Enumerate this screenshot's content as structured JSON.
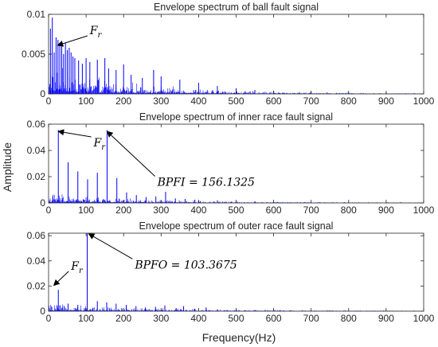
{
  "figure": {
    "ylabel": "Amplitude",
    "xlabel": "Frequency(Hz)"
  },
  "chart_data": [
    {
      "type": "line",
      "title": "Envelope spectrum of ball fault signal",
      "xlim": [
        0,
        1000
      ],
      "ylim": [
        0,
        0.01
      ],
      "xticks": [
        "0",
        "100",
        "200",
        "300",
        "400",
        "500",
        "600",
        "700",
        "800",
        "900",
        "1000"
      ],
      "yticks": [
        "0",
        "0.005",
        "0.01"
      ],
      "color": "#0000ff",
      "series": [
        {
          "x": [
            5,
            10,
            15,
            20,
            25,
            30,
            35,
            40,
            45,
            50,
            55,
            60,
            65,
            70,
            80,
            90,
            100,
            110,
            130,
            150,
            160,
            180,
            200,
            220,
            250,
            280,
            300,
            350,
            400,
            450,
            500,
            550,
            600,
            700,
            800,
            900,
            1000
          ],
          "y": [
            0.0082,
            0.0096,
            0.0052,
            0.0071,
            0.0068,
            0.0062,
            0.006,
            0.005,
            0.0064,
            0.0055,
            0.0058,
            0.0052,
            0.0047,
            0.0045,
            0.0042,
            0.0038,
            0.0045,
            0.004,
            0.0043,
            0.0045,
            0.0032,
            0.003,
            0.0037,
            0.0024,
            0.002,
            0.003,
            0.0022,
            0.0018,
            0.0014,
            0.001,
            0.0007,
            0.0005,
            0.0004,
            0.0003,
            0.0002,
            0.0002,
            0.0001
          ]
        }
      ],
      "annotations": [
        {
          "text": "F",
          "sub": "r",
          "x": 24,
          "y": 0.0061,
          "tx": 110,
          "ty": 0.0075
        }
      ]
    },
    {
      "type": "line",
      "title": "Envelope spectrum of inner race fault signal",
      "xlim": [
        0,
        1000
      ],
      "ylim": [
        0,
        0.06
      ],
      "xticks": [
        "0",
        "100",
        "200",
        "300",
        "400",
        "500",
        "600",
        "700",
        "800",
        "900",
        "1000"
      ],
      "yticks": [
        "0",
        "0.02",
        "0.04",
        "0.06"
      ],
      "color": "#0000ff",
      "series": [
        {
          "x": [
            26,
            52,
            78,
            104,
            130,
            156,
            182,
            208,
            234,
            260,
            286,
            312,
            338,
            364,
            390,
            450,
            500,
            550,
            600,
            700,
            800,
            900,
            1000
          ],
          "y": [
            0.0555,
            0.031,
            0.024,
            0.018,
            0.023,
            0.0555,
            0.019,
            0.008,
            0.006,
            0.0045,
            0.005,
            0.0085,
            0.0035,
            0.003,
            0.0025,
            0.002,
            0.0015,
            0.0012,
            0.001,
            0.0008,
            0.0006,
            0.0005,
            0.0004
          ]
        }
      ],
      "annotations": [
        {
          "text": "F",
          "sub": "r",
          "x": 26,
          "y": 0.0545,
          "tx": 120,
          "ty": 0.043
        },
        {
          "text": "BPFI = 156.1325",
          "x": 156,
          "y": 0.0545,
          "tx": 290,
          "ty": 0.013
        }
      ]
    },
    {
      "type": "line",
      "title": "Envelope spectrum of outer race fault signal",
      "xlim": [
        0,
        1000
      ],
      "ylim": [
        0,
        0.062
      ],
      "xticks": [
        "0",
        "100",
        "200",
        "300",
        "400",
        "500",
        "600",
        "700",
        "800",
        "900",
        "1000"
      ],
      "yticks": [
        "0",
        "0.02",
        "0.04",
        "0.06"
      ],
      "color": "#0000ff",
      "series": [
        {
          "x": [
            26,
            52,
            78,
            103,
            130,
            155,
            180,
            207,
            233,
            258,
            285,
            310,
            340,
            360,
            390,
            420,
            450,
            500,
            550,
            600,
            700,
            800,
            900,
            1000
          ],
          "y": [
            0.017,
            0.006,
            0.005,
            0.062,
            0.008,
            0.007,
            0.006,
            0.005,
            0.004,
            0.003,
            0.0035,
            0.0045,
            0.0025,
            0.004,
            0.002,
            0.003,
            0.0015,
            0.0012,
            0.001,
            0.0008,
            0.0006,
            0.0005,
            0.0004,
            0.0003
          ]
        }
      ],
      "annotations": [
        {
          "text": "F",
          "sub": "r",
          "x": 14,
          "y": 0.0205,
          "tx": 60,
          "ty": 0.033
        },
        {
          "text": "BPFO = 103.3675",
          "x": 107,
          "y": 0.0615,
          "tx": 230,
          "ty": 0.034
        }
      ]
    }
  ]
}
